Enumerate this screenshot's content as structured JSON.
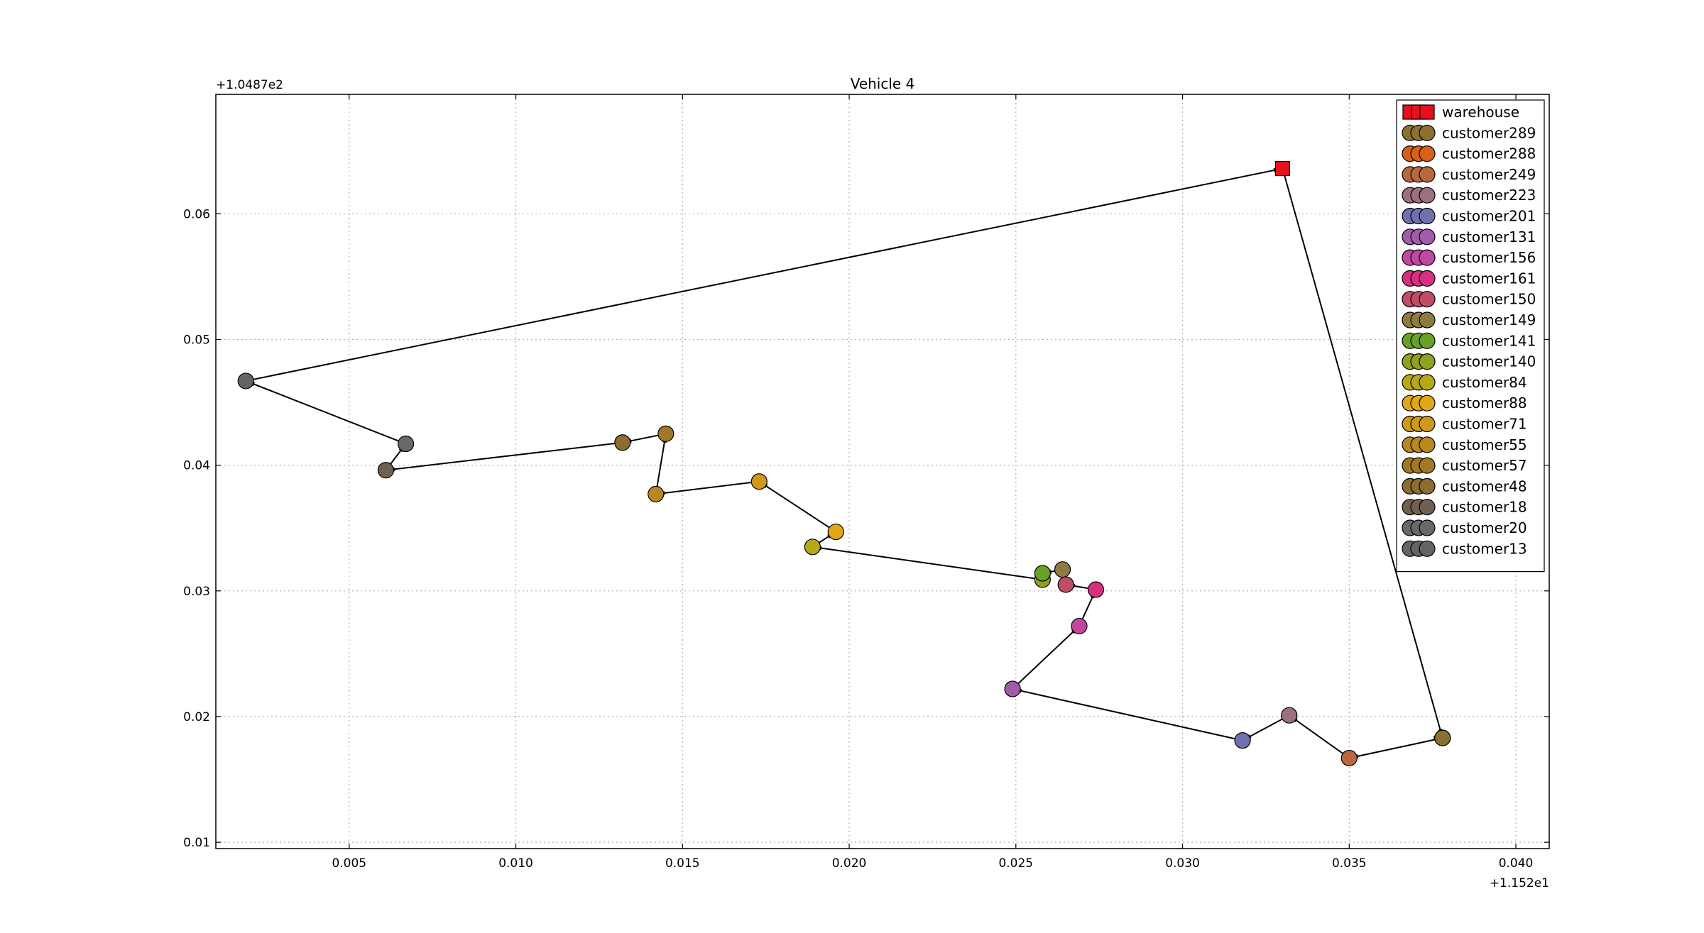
{
  "chart_data": {
    "type": "scatter",
    "title": "Vehicle 4",
    "x_offset_label": "+1.152e1",
    "y_offset_label": "+1.0487e2",
    "xlim": [
      0.001,
      0.041
    ],
    "ylim": [
      0.0095,
      0.0695
    ],
    "x_ticks": [
      "0.005",
      "0.010",
      "0.015",
      "0.020",
      "0.025",
      "0.030",
      "0.035",
      "0.040"
    ],
    "y_ticks": [
      "0.01",
      "0.02",
      "0.03",
      "0.04",
      "0.05",
      "0.06"
    ],
    "grid": true,
    "legend_position": "top-right",
    "route_line_color": "#000000",
    "points": [
      {
        "name": "warehouse",
        "marker": "square",
        "color": "#e8101e",
        "x": 0.033,
        "y": 0.0636
      },
      {
        "name": "customer289",
        "marker": "circle",
        "color": "#8c7030",
        "x": 0.0378,
        "y": 0.0183
      },
      {
        "name": "customer288",
        "marker": "circle",
        "color": "#d8601a",
        "x": 0.0378,
        "y": 0.0183
      },
      {
        "name": "customer249",
        "marker": "circle",
        "color": "#b8683e",
        "x": 0.035,
        "y": 0.0167
      },
      {
        "name": "customer223",
        "marker": "circle",
        "color": "#9c7080",
        "x": 0.0332,
        "y": 0.0201
      },
      {
        "name": "customer201",
        "marker": "circle",
        "color": "#7070b0",
        "x": 0.0318,
        "y": 0.0181
      },
      {
        "name": "customer131",
        "marker": "circle",
        "color": "#a05ca8",
        "x": 0.0249,
        "y": 0.0222
      },
      {
        "name": "customer156",
        "marker": "circle",
        "color": "#c048a0",
        "x": 0.0269,
        "y": 0.0272
      },
      {
        "name": "customer161",
        "marker": "circle",
        "color": "#d83080",
        "x": 0.0274,
        "y": 0.0301
      },
      {
        "name": "customer150",
        "marker": "circle",
        "color": "#c04c68",
        "x": 0.0265,
        "y": 0.0305
      },
      {
        "name": "customer149",
        "marker": "circle",
        "color": "#8c7c40",
        "x": 0.0264,
        "y": 0.0317
      },
      {
        "name": "customer141",
        "marker": "circle",
        "color": "#68a028",
        "x": 0.0258,
        "y": 0.0314
      },
      {
        "name": "customer140",
        "marker": "circle",
        "color": "#90a020",
        "x": 0.0258,
        "y": 0.0309
      },
      {
        "name": "customer84",
        "marker": "circle",
        "color": "#b8a818",
        "x": 0.0189,
        "y": 0.0335
      },
      {
        "name": "customer88",
        "marker": "circle",
        "color": "#e0a818",
        "x": 0.0196,
        "y": 0.0347
      },
      {
        "name": "customer71",
        "marker": "circle",
        "color": "#d09818",
        "x": 0.0173,
        "y": 0.0387
      },
      {
        "name": "customer55",
        "marker": "circle",
        "color": "#b88820",
        "x": 0.0142,
        "y": 0.0377
      },
      {
        "name": "customer57",
        "marker": "circle",
        "color": "#a07828",
        "x": 0.0145,
        "y": 0.0425
      },
      {
        "name": "customer48",
        "marker": "circle",
        "color": "#8c6c30",
        "x": 0.0132,
        "y": 0.0418
      },
      {
        "name": "customer18",
        "marker": "circle",
        "color": "#706050",
        "x": 0.0061,
        "y": 0.0396
      },
      {
        "name": "customer20",
        "marker": "circle",
        "color": "#686868",
        "x": 0.0067,
        "y": 0.0417
      },
      {
        "name": "customer13",
        "marker": "circle",
        "color": "#646464",
        "x": 0.0019,
        "y": 0.0467
      }
    ],
    "route_order": [
      "warehouse",
      "customer289",
      "customer288",
      "customer249",
      "customer223",
      "customer201",
      "customer131",
      "customer156",
      "customer161",
      "customer150",
      "customer149",
      "customer141",
      "customer140",
      "customer84",
      "customer88",
      "customer71",
      "customer55",
      "customer57",
      "customer48",
      "customer18",
      "customer20",
      "customer13",
      "warehouse"
    ]
  }
}
